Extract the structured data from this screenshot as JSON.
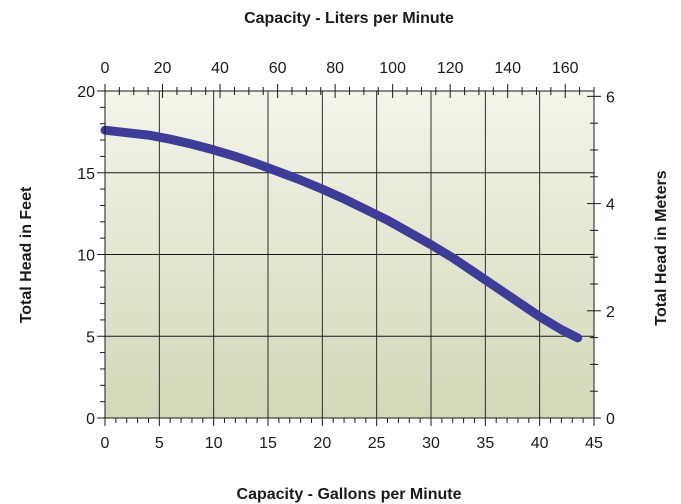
{
  "chart_data": {
    "type": "line",
    "title": "Capacity - Liters per Minute",
    "xlabel": "Capacity - Gallons per Minute",
    "ylabel": "Total Head in Feet",
    "y2label": "Total Head in Meters",
    "x2label": "Capacity - Liters per Minute",
    "xlim": [
      0,
      45
    ],
    "ylim": [
      0,
      20
    ],
    "x2lim": [
      0,
      170
    ],
    "y2lim": [
      0,
      6.1
    ],
    "x_ticks": [
      0,
      5,
      10,
      15,
      20,
      25,
      30,
      35,
      40,
      45
    ],
    "y_ticks": [
      0,
      5,
      10,
      15,
      20
    ],
    "x2_ticks": [
      0,
      20,
      40,
      60,
      80,
      100,
      120,
      140,
      160
    ],
    "y2_ticks": [
      0,
      2,
      4,
      6
    ],
    "grid": true,
    "series": [
      {
        "color": "#3d3c96",
        "x": [
          0,
          2,
          4,
          6,
          8,
          10,
          12,
          14,
          16,
          18,
          20,
          22,
          24,
          26,
          28,
          30,
          32,
          34,
          36,
          38,
          40,
          42,
          43.5
        ],
        "values": [
          17.6,
          17.45,
          17.3,
          17.05,
          16.75,
          16.4,
          16.0,
          15.55,
          15.05,
          14.55,
          14.0,
          13.4,
          12.75,
          12.1,
          11.35,
          10.6,
          9.8,
          8.9,
          8.0,
          7.1,
          6.2,
          5.4,
          4.9
        ]
      }
    ],
    "background_gradient": [
      "#f4f4ea",
      "#d2d8b8"
    ]
  }
}
